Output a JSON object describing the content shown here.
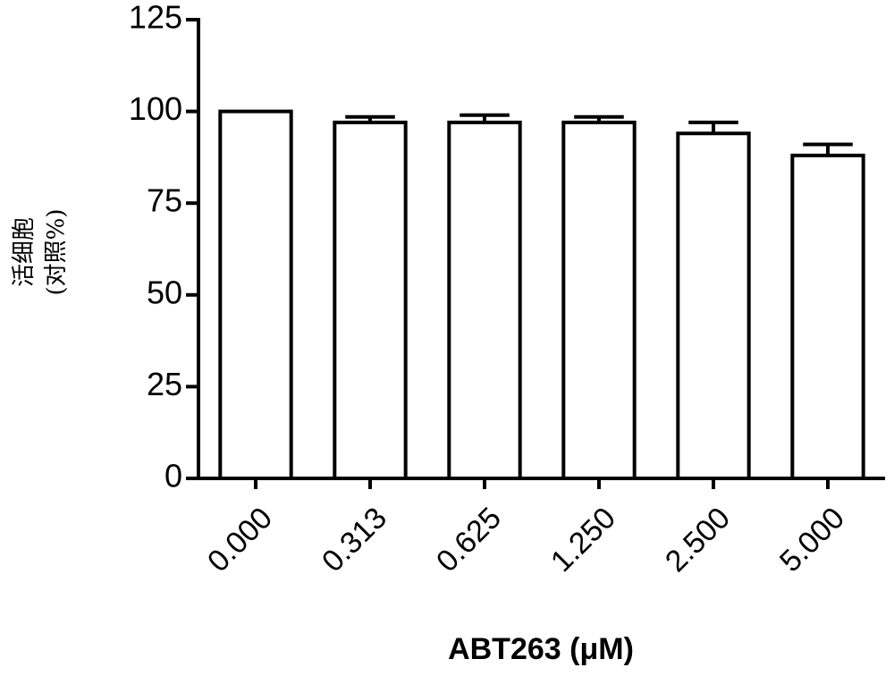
{
  "chart_data": {
    "type": "bar",
    "ylabel": [
      "活细胞",
      "(对照%)"
    ],
    "xlabel": "ABT263 (μM)",
    "categories": [
      "0.000",
      "0.313",
      "0.625",
      "1.250",
      "2.500",
      "5.000"
    ],
    "values": [
      100,
      97,
      97,
      97,
      94,
      88
    ],
    "errors": [
      0,
      1.5,
      2,
      1.5,
      3,
      3
    ],
    "color": "#ffffff",
    "ylim": [
      0,
      125
    ],
    "yticks": [
      0,
      25,
      50,
      75,
      100,
      125
    ],
    "grid": false
  }
}
